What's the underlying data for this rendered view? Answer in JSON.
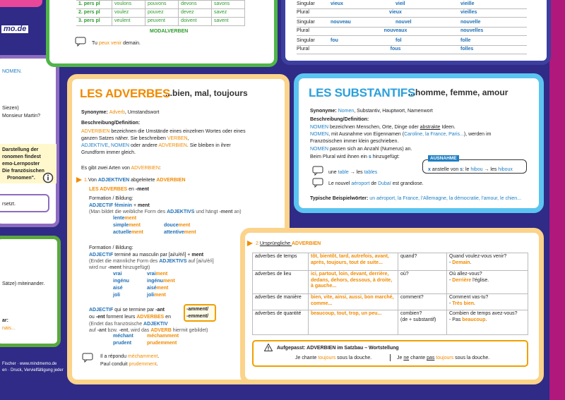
{
  "logo": "mo.de",
  "modal_panel": {
    "rows": [
      [
        "1. pers pl",
        "voulons",
        "pouvons",
        "devons",
        "savons"
      ],
      [
        "2. pers pl",
        "voulez",
        "pouvez",
        "devez",
        "savez"
      ],
      [
        "3. pers pl",
        "veulent",
        "peuvent",
        "doivent",
        "savent"
      ]
    ],
    "label": "MODALVERBEN",
    "example": [
      "Tu ",
      "peux venir",
      " demain."
    ]
  },
  "adjective_panel": {
    "rows": [
      [
        "Singular",
        "vieux",
        "vieil",
        "vieille"
      ],
      [
        "Plural",
        "vieux",
        "vieilles"
      ],
      [
        "Singular",
        "nouveau",
        "nouvel",
        "nouvelle"
      ],
      [
        "Plural",
        "nouveaux",
        "nouvelles"
      ],
      [
        "Singular",
        "fou",
        "fol",
        "folle"
      ],
      [
        "Plural",
        "fous",
        "folles"
      ]
    ]
  },
  "left_fragments": {
    "top": [
      "NOMEN."
    ],
    "middle": [
      "Siezen)",
      "Monsieur Martin?"
    ],
    "note": [
      "Darstellung der",
      "ronomen findest",
      "emo-Lernposter",
      "Die französischen",
      "Pronomen\"."
    ],
    "bottom": "rsetzt.",
    "green": [
      "Sätze) miteinander.",
      "ar:",
      "nais..."
    ]
  },
  "footer": [
    "Fischer · www.mindmemo.de",
    "en · Druck, Vervielfältigung jeder"
  ],
  "adverbes": {
    "title": "LES ADVERBES",
    "subtitle": "...bien, mal, toujours",
    "synonyme": [
      "Synonyme: ",
      "Adverb",
      ", Umstandswort"
    ],
    "definition_label": "Beschreibung/Definition:",
    "definition": [
      [
        "ADVERBIEN",
        " bezeichnen die Umstände eines einzelnen Wortes oder eines"
      ],
      [
        "ganzen Satzes näher. Sie beschreiben ",
        "VERBEN",
        ","
      ],
      [
        "ADJEKTIVE",
        ", ",
        "NOMEN",
        " oder andere ",
        "ADVERBIEN",
        ". Sie bleiben in ihrer"
      ],
      [
        "Grundform immer gleich."
      ]
    ],
    "arten": [
      "Es gibt zwei Arten von ",
      "ADVERBIEN",
      ":"
    ],
    "section1": [
      "1.",
      "Von ",
      "ADJEKTIVEN",
      " abgeleitete ",
      "ADVERBIEN"
    ],
    "ment": [
      "LES ADVERBES",
      " en ",
      "-ment"
    ],
    "formation1": "Formation / Bildung:",
    "rule1": [
      "ADJECTIF féminin",
      " + ",
      "ment"
    ],
    "note1": [
      "(Man bildet die weibliche Form des ",
      "ADJEKTIVS",
      " und hängt ",
      "-ment",
      " an)"
    ],
    "examples1": [
      [
        "lente",
        "ment"
      ],
      [
        "douce",
        "ment"
      ],
      [
        "simple",
        "ment"
      ],
      [
        "actuelle",
        "ment"
      ],
      [
        "attentive",
        "ment"
      ]
    ],
    "formation2": "Formation / Bildung:",
    "rule2": [
      "ADJECTIF",
      " terminé au masculin par [ai/u/é/i] ",
      "+ ",
      "ment"
    ],
    "note2a": [
      "(Endet die männliche Form des ",
      "ADJEKTIVS",
      " auf [ai/u/é/i]"
    ],
    "note2b": [
      "wird nur ",
      "-ment",
      " hinzugefügt)"
    ],
    "examples2": [
      [
        "vrai",
        "vrai",
        "ment"
      ],
      [
        "ingénu",
        "ingénu",
        "ment"
      ],
      [
        "aisé",
        "aisé",
        "ment"
      ],
      [
        "joli",
        "joli",
        "ment"
      ]
    ],
    "rule3a": [
      "ADJECTIF",
      " qui se termine par ",
      "-ant"
    ],
    "rule3b": [
      "ou ",
      "-ent",
      " forment leurs ",
      "ADVERBES",
      " en"
    ],
    "note3a": [
      "(Endet das französische ",
      "ADJEKTIV"
    ],
    "note3b": [
      "auf ",
      "-ant",
      " bzw. ",
      "-ent",
      ", wird das ",
      "ADVERB",
      " hiermit gebildet)"
    ],
    "endings": [
      "-amment/",
      "-emment/"
    ],
    "examples3": [
      [
        "méchant",
        "méchamment"
      ],
      [
        "prudent",
        "prudemment"
      ]
    ],
    "sentences": [
      [
        "Il a répondu ",
        "méchamment",
        "."
      ],
      [
        "Paul conduit ",
        "prudemment",
        "."
      ]
    ]
  },
  "substantifs": {
    "title": "LES SUBSTANTIFS",
    "subtitle": "...homme, femme, amour",
    "synonyme": [
      "Synonyme: ",
      "Nomen",
      ", Substantiv, Hauptwort, Namenwort"
    ],
    "definition_label": "Beschreibung/Definition:",
    "definition": [
      [
        "NOMEN",
        " bezeichnen Menschen, Orte, Dinge oder ",
        "abstrakte",
        " Ideen."
      ],
      [
        "NOMEN",
        ", mit Ausnahme von Eigennamen (",
        "Caroline, la France, Paris...",
        "), werden im"
      ],
      [
        "Französischen immer klein geschrieben."
      ],
      [
        "NOMEN",
        " passen sich an Anzahl (Numerus) an."
      ],
      [
        "Beim Plural wird ihnen ein ",
        "s",
        " hinzugefügt:"
      ]
    ],
    "plural_example": [
      "une ",
      "table",
      " → les ",
      "tables"
    ],
    "sentence": [
      "Le nouvel ",
      "aéroport",
      " de ",
      "Dubaï",
      " est grandiose."
    ],
    "exception_label": "AUSNAHME",
    "exception": [
      "x",
      " anstelle von ",
      "s",
      ": le ",
      "hibou",
      " → les ",
      "hiboux"
    ],
    "typical": [
      "Typische Beispielwörter: ",
      "un aéroport, la France, l'Allemagne, la démocratie, l'amour, le chien..."
    ]
  },
  "original_adverbs": {
    "header": [
      "2.",
      "Ursprüngliche ",
      "ADVERBIEN"
    ],
    "rows": [
      {
        "type": "adverbes de temps",
        "examples": "tôt, bientôt, tard, autrefois, avant, après, toujours, tout de suite...",
        "question": [
          "quand?"
        ],
        "sample": "Quand voulez-vous venir?",
        "answer": [
          "- ",
          "Demain",
          "."
        ]
      },
      {
        "type": "adverbes de lieu",
        "examples": "ici, partout, loin, devant, derrière, dedans, dehors, dessous, à droite, à gauche...",
        "question": [
          "où?"
        ],
        "sample": "Où allez-vous?",
        "answer": [
          "- ",
          "Derrière",
          " l'église."
        ]
      },
      {
        "type": "adverbes de manière",
        "examples": "bien, vite, ainsi, aussi, bon marché, comme...",
        "question": [
          "comment?"
        ],
        "sample": "Comment vas-tu?",
        "answer": [
          "- ",
          "Très bien",
          "."
        ]
      },
      {
        "type": "adverbes de quantité",
        "examples": "beaucoup, tout, trop, un peu...",
        "question": [
          "combien?",
          "(de + substantif)"
        ],
        "sample": "Combien de temps avez-vous?",
        "answer": [
          "- Pas ",
          "beaucoup",
          "."
        ]
      }
    ],
    "warning": [
      "Aufgepasst: ",
      "ADVERBIEN",
      " im Satzbau – Wortstellung"
    ],
    "warning_examples": [
      [
        "Je chante ",
        "toujours",
        " sous la douche."
      ],
      [
        "Je ",
        "ne",
        " chante ",
        "pas",
        " toujours",
        " sous la douche."
      ]
    ]
  }
}
